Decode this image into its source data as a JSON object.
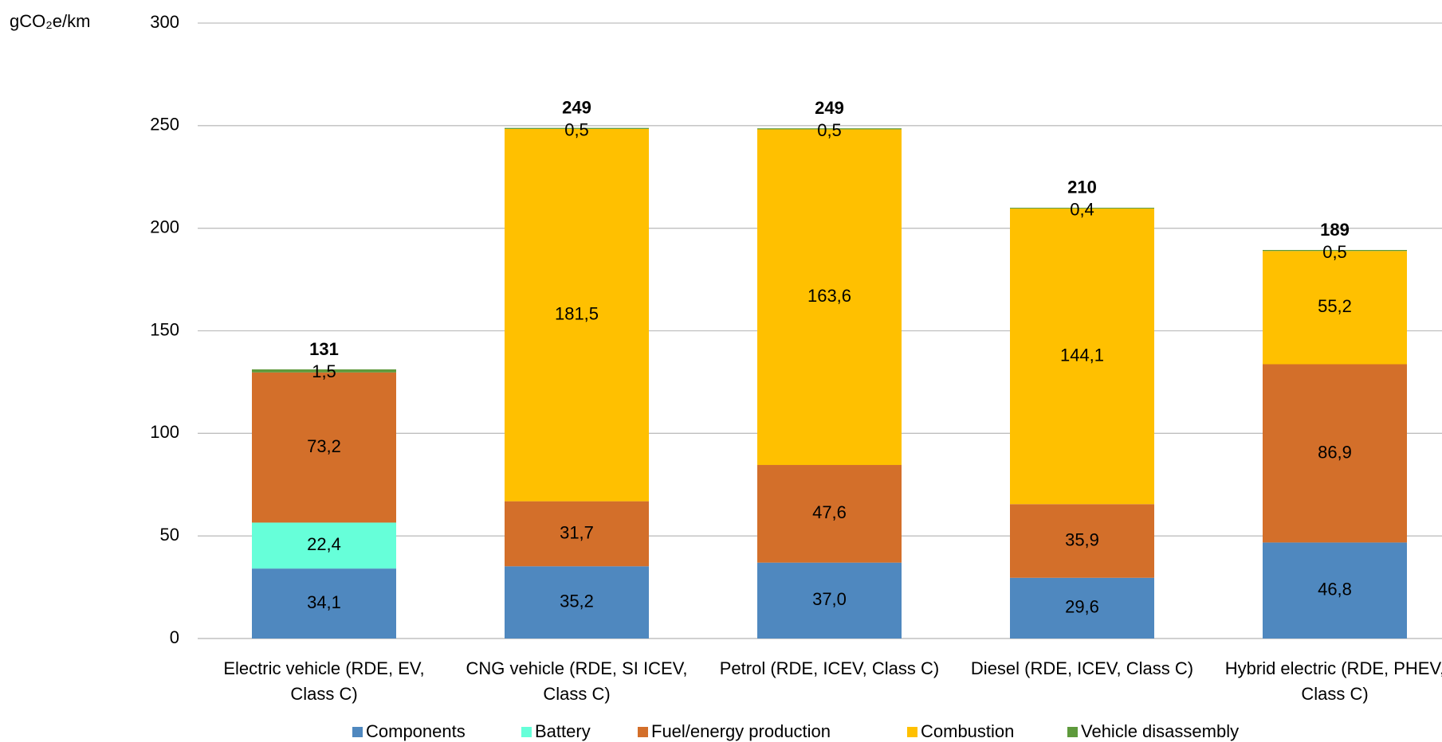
{
  "chart_data": {
    "type": "stacked_bar",
    "y_label": "gCO₂e/km",
    "categories": [
      "Electric vehicle (RDE, EV, Class C)",
      "CNG vehicle (RDE, SI ICEV, Class C)",
      "Petrol (RDE, ICEV, Class C)",
      "Diesel (RDE, ICEV, Class C)",
      "Hybrid electric (RDE, PHEV, Class C)"
    ],
    "series": [
      {
        "name": "Components",
        "color": "#4f88bf",
        "values": [
          34.1,
          35.2,
          37.0,
          29.6,
          46.8
        ],
        "value_labels": [
          "34,1",
          "35,2",
          "37,0",
          "29,6",
          "46,8"
        ]
      },
      {
        "name": "Battery",
        "color": "#66ffd9",
        "values": [
          22.4,
          null,
          null,
          null,
          null
        ],
        "value_labels": [
          "22,4",
          null,
          null,
          null,
          null
        ]
      },
      {
        "name": "Fuel/energy production",
        "color": "#d36f2a",
        "values": [
          73.2,
          31.7,
          47.6,
          35.9,
          86.9
        ],
        "value_labels": [
          "73,2",
          "31,7",
          "47,6",
          "35,9",
          "86,9"
        ]
      },
      {
        "name": "Combustion",
        "color": "#ffc000",
        "values": [
          null,
          181.5,
          163.6,
          144.1,
          55.2
        ],
        "value_labels": [
          null,
          "181,5",
          "163,6",
          "144,1",
          "55,2"
        ]
      },
      {
        "name": "Vehicle disassembly",
        "color": "#5e9a3c",
        "values": [
          1.5,
          0.5,
          0.5,
          0.4,
          0.5
        ],
        "value_labels": [
          "1,5",
          "0,5",
          "0,5",
          "0,4",
          "0,5"
        ]
      }
    ],
    "totals": [
      131,
      249,
      249,
      210,
      189
    ],
    "ylim": [
      0,
      300
    ],
    "yticks": [
      0,
      50,
      100,
      150,
      200,
      250,
      300
    ],
    "grid": true,
    "legend": "bottom"
  }
}
